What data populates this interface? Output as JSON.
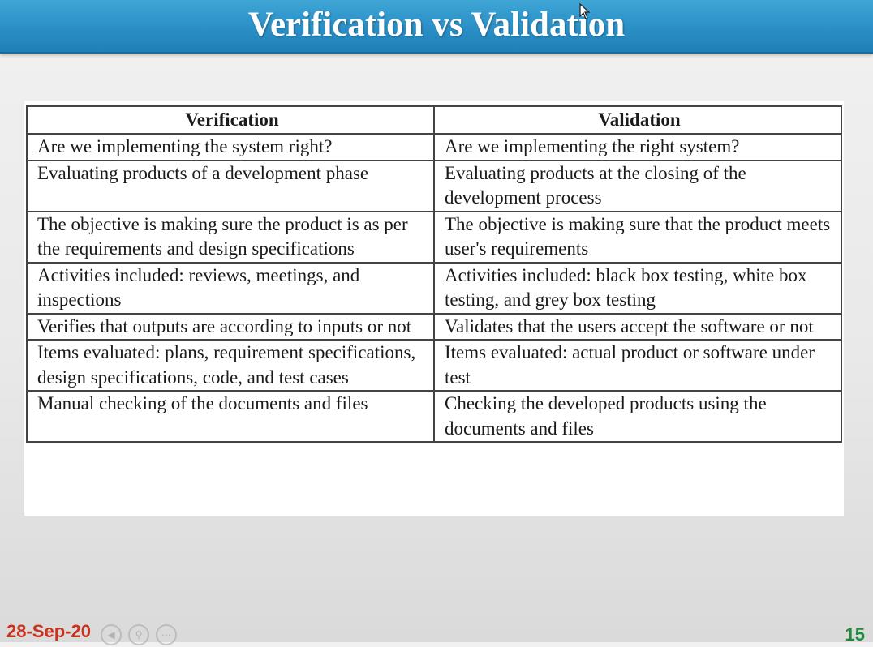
{
  "slide": {
    "title": "Verification vs Validation",
    "date": "28-Sep-20",
    "page_number": "15",
    "colors": {
      "title_bar": "#2a8fc6",
      "title_text": "#ffffff",
      "date_text": "#c8321e",
      "page_number_text": "#1f8a3a"
    }
  },
  "table": {
    "headers": [
      "Verification",
      "Validation"
    ],
    "rows": [
      [
        "Are we implementing the system right?",
        "Are we implementing the right system?"
      ],
      [
        "Evaluating products of a development phase",
        "Evaluating products at the closing of the development process"
      ],
      [
        "The objective is making sure the product is as per the requirements and design specifications",
        "The objective is making sure that the product meets user's requirements"
      ],
      [
        "Activities included: reviews, meetings, and inspections",
        "Activities included: black box testing, white box testing, and grey box testing"
      ],
      [
        "Verifies that outputs are according to inputs or not",
        "Validates that the users accept the software or not"
      ],
      [
        "Items evaluated: plans, requirement specifications, design specifications, code, and test cases",
        "Items evaluated: actual product or software under test"
      ],
      [
        "Manual checking of the documents and files",
        "Checking the developed products using the documents and files"
      ]
    ]
  },
  "icons": {
    "cursor": "mouse-pointer-icon",
    "player_controls": [
      "rewind-icon",
      "search-icon",
      "more-icon"
    ]
  }
}
